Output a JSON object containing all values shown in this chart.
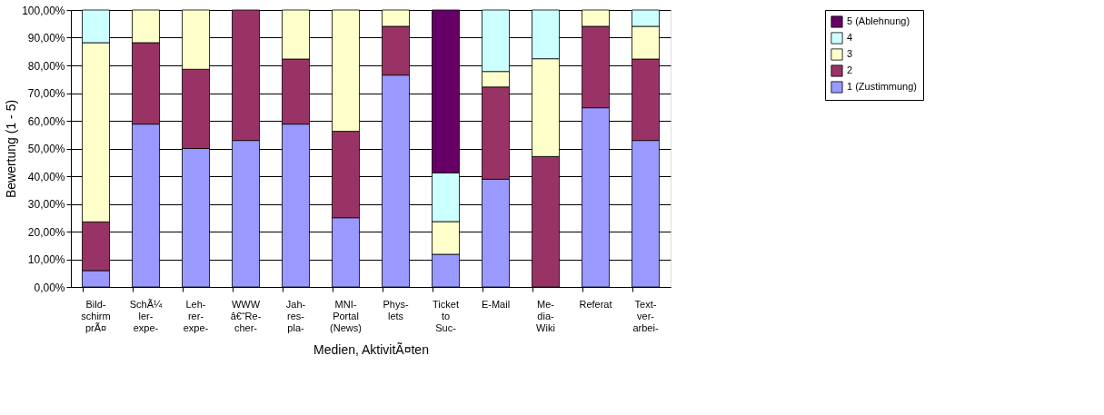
{
  "chart_data": {
    "type": "bar",
    "stacked": true,
    "ylabel": "Bewertung (1 - 5)",
    "xlabel": "Medien, AktivitÃ¤ten",
    "categories": [
      "Bild-\nschirm\nprÃ¤",
      "SchÃ¼\nler-\nexpe-",
      "Leh-\nrer-\nexpe-",
      "WWW\nâ€“Re-\ncher-",
      "Jah-\nres-\npla-",
      "MNI-\nPortal\n(News)",
      "Phys-\nlets",
      "Ticket\nto\nSuc-",
      "E-Mail",
      "Me-\ndia-\nWiki",
      "Referat",
      "Text-\nver-\narbei-"
    ],
    "series": [
      {
        "name": "1 (Zustimmung)",
        "color": "#9999ff",
        "values": [
          5.9,
          58.8,
          50,
          52.9,
          58.8,
          25,
          76.5,
          11.8,
          38.9,
          null,
          64.7,
          52.9
        ]
      },
      {
        "name": "2",
        "color": "#993366",
        "values": [
          17.6,
          29.4,
          28.6,
          47.1,
          23.5,
          31.2,
          17.6,
          null,
          33.3,
          47.1,
          29.4,
          29.4
        ]
      },
      {
        "name": "3",
        "color": "#ffffcc",
        "values": [
          64.7,
          11.8,
          21.4,
          null,
          17.7,
          43.8,
          5.9,
          11.8,
          5.6,
          35.3,
          5.9,
          11.8
        ]
      },
      {
        "name": "4",
        "color": "#ccffff",
        "values": [
          11.8,
          null,
          null,
          null,
          null,
          null,
          null,
          17.6,
          22.2,
          17.6,
          null,
          5.9
        ]
      },
      {
        "name": "5 (Ablehnung)",
        "color": "#660066",
        "values": [
          null,
          null,
          null,
          null,
          null,
          null,
          null,
          58.8,
          null,
          null,
          null,
          null
        ]
      }
    ],
    "ylim": [
      0,
      100
    ],
    "yticks": [
      {
        "value": 0,
        "label": "0,00%"
      },
      {
        "value": 10,
        "label": "10,00%"
      },
      {
        "value": 20,
        "label": "20,00%"
      },
      {
        "value": 30,
        "label": "30,00%"
      },
      {
        "value": 40,
        "label": "40,00%"
      },
      {
        "value": 50,
        "label": "50,00%"
      },
      {
        "value": 60,
        "label": "60,00%"
      },
      {
        "value": 70,
        "label": "70,00%"
      },
      {
        "value": 80,
        "label": "80,00%"
      },
      {
        "value": 90,
        "label": "90,00%"
      },
      {
        "value": 100,
        "label": "100,00%"
      }
    ],
    "grid": "y",
    "legend": "right"
  }
}
